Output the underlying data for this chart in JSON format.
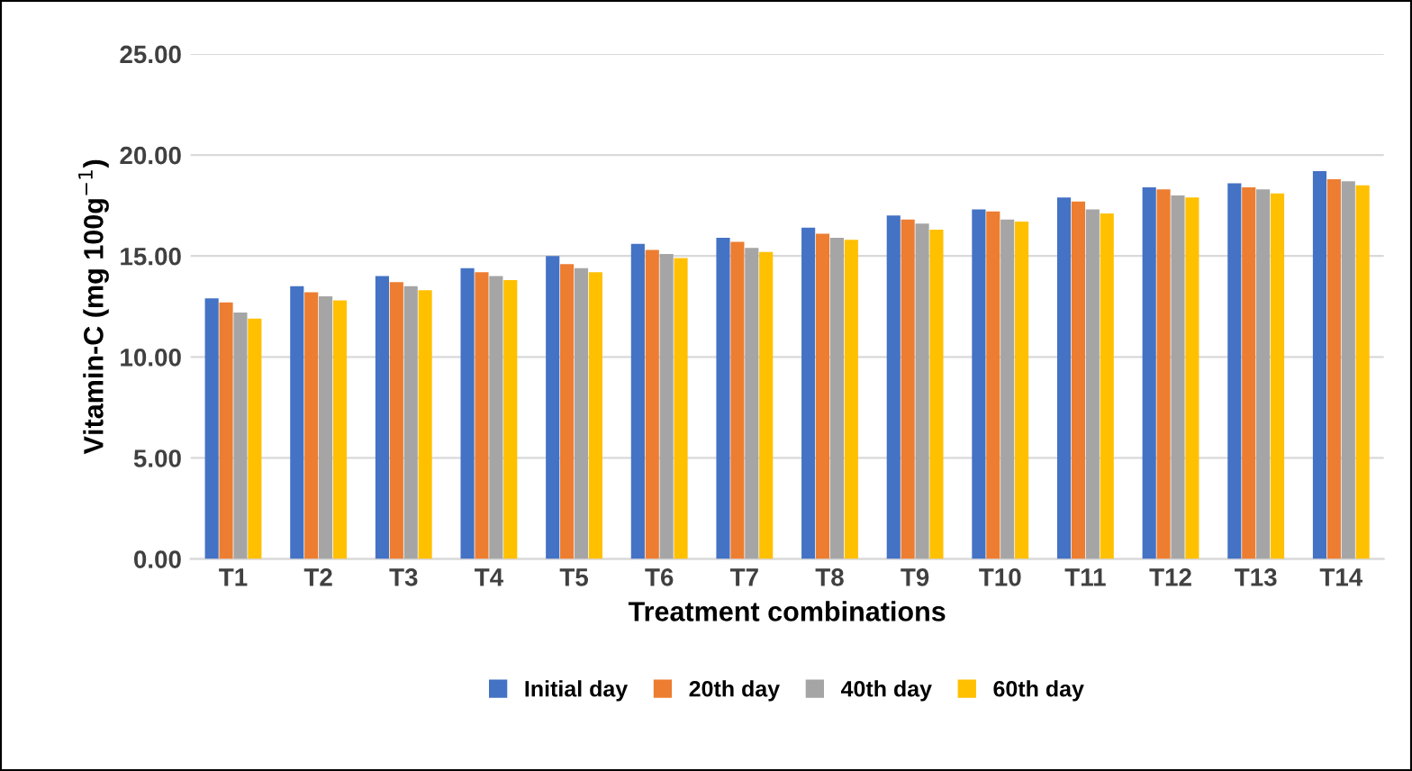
{
  "chart_data": {
    "type": "bar",
    "xlabel": "Treatment combinations",
    "ylabel": "Vitamin-C (mg 100g$^{−1}$)",
    "categories": [
      "T1",
      "T2",
      "T3",
      "T4",
      "T5",
      "T6",
      "T7",
      "T8",
      "T9",
      "T10",
      "T11",
      "T12",
      "T13",
      "T14"
    ],
    "series": [
      {
        "name": "Initial day",
        "color": "#4472c4",
        "values": [
          12.9,
          13.5,
          14.0,
          14.4,
          15.0,
          15.6,
          15.9,
          16.4,
          17.0,
          17.3,
          17.9,
          18.4,
          18.6,
          19.2
        ]
      },
      {
        "name": "20th day",
        "color": "#ed7d31",
        "values": [
          12.7,
          13.2,
          13.7,
          14.2,
          14.6,
          15.3,
          15.7,
          16.1,
          16.8,
          17.2,
          17.7,
          18.3,
          18.4,
          18.8
        ]
      },
      {
        "name": "40th day",
        "color": "#a5a5a5",
        "values": [
          12.2,
          13.0,
          13.5,
          14.0,
          14.4,
          15.1,
          15.4,
          15.9,
          16.6,
          16.8,
          17.3,
          18.0,
          18.3,
          18.7
        ]
      },
      {
        "name": "60th day",
        "color": "#ffc000",
        "values": [
          11.9,
          12.8,
          13.3,
          13.8,
          14.2,
          14.9,
          15.2,
          15.8,
          16.3,
          16.7,
          17.1,
          17.9,
          18.1,
          18.5
        ]
      }
    ],
    "ylim": [
      0,
      25
    ],
    "yticks": [
      {
        "value": 0,
        "label": "0.00"
      },
      {
        "value": 5,
        "label": "5.00"
      },
      {
        "value": 10,
        "label": "10.00"
      },
      {
        "value": 15,
        "label": "15.00"
      },
      {
        "value": 20,
        "label": "20.00"
      },
      {
        "value": 25,
        "label": "25.00"
      }
    ],
    "grid": "y",
    "legend": "bottom"
  }
}
